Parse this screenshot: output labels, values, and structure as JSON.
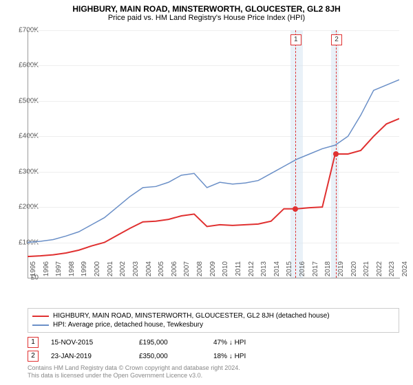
{
  "title": "HIGHBURY, MAIN ROAD, MINSTERWORTH, GLOUCESTER, GL2 8JH",
  "subtitle": "Price paid vs. HM Land Registry's House Price Index (HPI)",
  "chart": {
    "type": "line",
    "x_years": [
      1995,
      1996,
      1997,
      1998,
      1999,
      2000,
      2001,
      2002,
      2003,
      2004,
      2005,
      2006,
      2007,
      2008,
      2009,
      2010,
      2011,
      2012,
      2013,
      2014,
      2015,
      2016,
      2017,
      2018,
      2019,
      2020,
      2021,
      2022,
      2023,
      2024
    ],
    "ylim": [
      0,
      700000
    ],
    "ytick_step": 100000,
    "ytick_labels": [
      "£0",
      "£100K",
      "£200K",
      "£300K",
      "£400K",
      "£500K",
      "£600K",
      "£700K"
    ],
    "background_color": "#ffffff",
    "grid_color": "#eeeeee",
    "axis_color": "#999999",
    "label_fontsize": 10,
    "title_fontsize": 12,
    "series": [
      {
        "name": "price_paid",
        "label": "HIGHBURY, MAIN ROAD, MINSTERWORTH, GLOUCESTER, GL2 8JH (detached house)",
        "color": "#e03030",
        "line_width": 2,
        "values": [
          60000,
          62000,
          65000,
          70000,
          78000,
          90000,
          100000,
          120000,
          140000,
          158000,
          160000,
          165000,
          175000,
          180000,
          145000,
          150000,
          148000,
          150000,
          152000,
          160000,
          195000,
          195000,
          198000,
          200000,
          350000,
          350000,
          360000,
          400000,
          435000,
          450000
        ]
      },
      {
        "name": "hpi",
        "label": "HPI: Average price, detached house, Tewkesbury",
        "color": "#6a8fc7",
        "line_width": 1.5,
        "values": [
          100000,
          103000,
          108000,
          118000,
          130000,
          150000,
          170000,
          200000,
          230000,
          255000,
          258000,
          270000,
          290000,
          295000,
          255000,
          270000,
          265000,
          268000,
          275000,
          295000,
          315000,
          335000,
          350000,
          365000,
          375000,
          400000,
          460000,
          530000,
          545000,
          560000
        ]
      }
    ],
    "highlight_bands": [
      {
        "from_year": 2015.5,
        "to_year": 2016.5,
        "color": "#dbe7f3"
      },
      {
        "from_year": 2018.7,
        "to_year": 2019.3,
        "color": "#dbe7f3"
      }
    ],
    "vlines": [
      {
        "year": 2015.88,
        "dash": true,
        "color": "#e03030"
      },
      {
        "year": 2019.06,
        "dash": true,
        "color": "#e03030"
      }
    ],
    "markers": [
      {
        "id": "1",
        "year": 2015.88,
        "value": 195000
      },
      {
        "id": "2",
        "year": 2019.06,
        "value": 350000
      }
    ]
  },
  "legend": {
    "items": [
      {
        "color": "#e03030",
        "label": "HIGHBURY, MAIN ROAD, MINSTERWORTH, GLOUCESTER, GL2 8JH (detached house)"
      },
      {
        "color": "#6a8fc7",
        "label": "HPI: Average price, detached house, Tewkesbury"
      }
    ]
  },
  "transactions": [
    {
      "id": "1",
      "date": "15-NOV-2015",
      "price": "£195,000",
      "pct": "47% ↓ HPI"
    },
    {
      "id": "2",
      "date": "23-JAN-2019",
      "price": "£350,000",
      "pct": "18% ↓ HPI"
    }
  ],
  "footer": {
    "line1": "Contains HM Land Registry data © Crown copyright and database right 2024.",
    "line2": "This data is licensed under the Open Government Licence v3.0."
  }
}
